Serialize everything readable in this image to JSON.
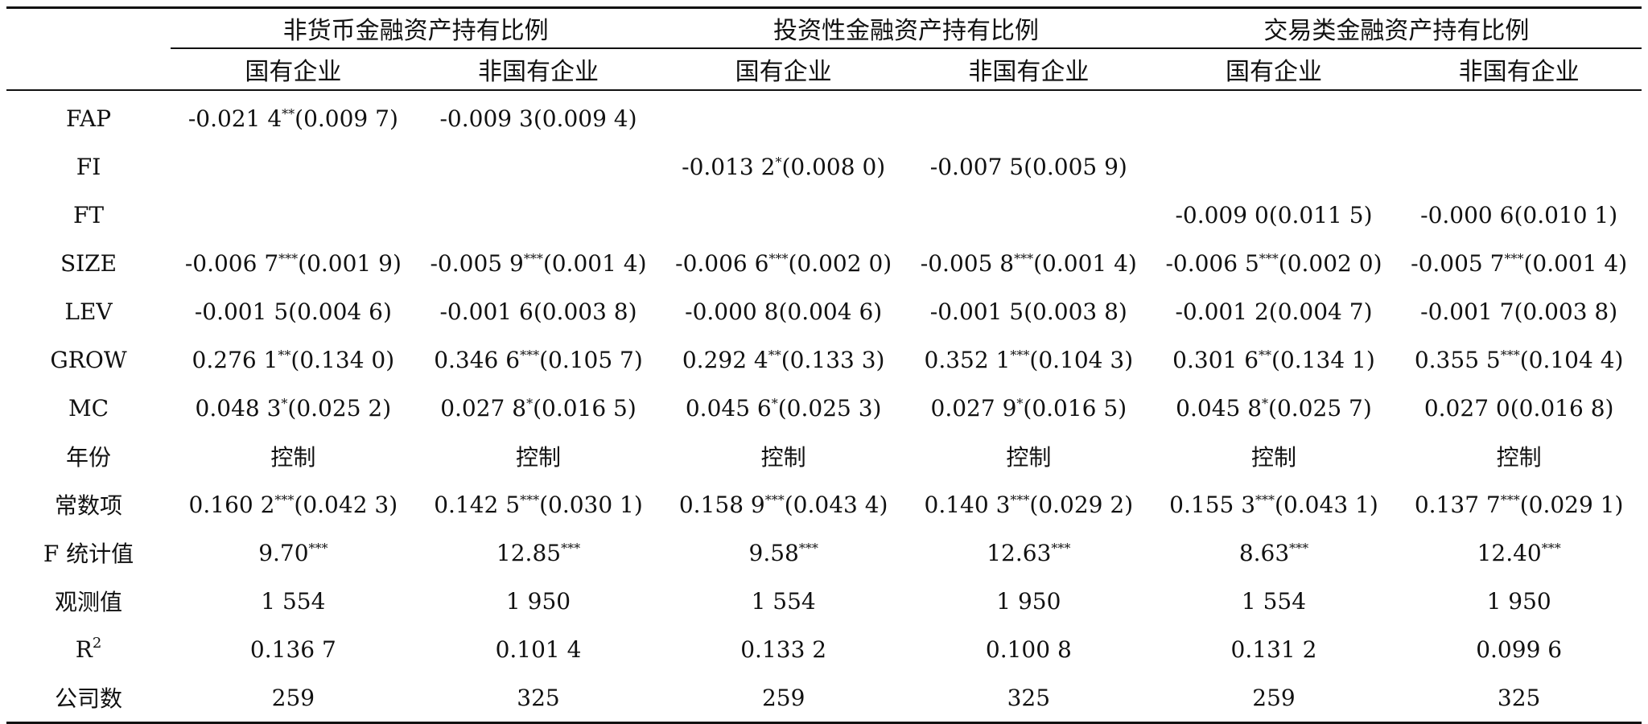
{
  "header": {
    "groups": [
      "非货币金融资产持有比例",
      "投资性金融资产持有比例",
      "交易类金融资产持有比例"
    ],
    "subgroups": [
      "国有企业",
      "非国有企业",
      "国有企业",
      "非国有企业",
      "国有企业",
      "非国有企业"
    ]
  },
  "rows": [
    {
      "label": "FAP",
      "cells": [
        {
          "coef": "-0.021 4",
          "stars": "**",
          "se": "(0.009 7)"
        },
        {
          "coef": "-0.009 3",
          "stars": "",
          "se": "(0.009 4)"
        },
        {
          "coef": "",
          "stars": "",
          "se": ""
        },
        {
          "coef": "",
          "stars": "",
          "se": ""
        },
        {
          "coef": "",
          "stars": "",
          "se": ""
        },
        {
          "coef": "",
          "stars": "",
          "se": ""
        }
      ]
    },
    {
      "label": "FI",
      "cells": [
        {
          "coef": "",
          "stars": "",
          "se": ""
        },
        {
          "coef": "",
          "stars": "",
          "se": ""
        },
        {
          "coef": "-0.013 2",
          "stars": "*",
          "se": "(0.008 0)"
        },
        {
          "coef": "-0.007 5",
          "stars": "",
          "se": "(0.005 9)"
        },
        {
          "coef": "",
          "stars": "",
          "se": ""
        },
        {
          "coef": "",
          "stars": "",
          "se": ""
        }
      ]
    },
    {
      "label": "FT",
      "cells": [
        {
          "coef": "",
          "stars": "",
          "se": ""
        },
        {
          "coef": "",
          "stars": "",
          "se": ""
        },
        {
          "coef": "",
          "stars": "",
          "se": ""
        },
        {
          "coef": "",
          "stars": "",
          "se": ""
        },
        {
          "coef": "-0.009 0",
          "stars": "",
          "se": "(0.011 5)"
        },
        {
          "coef": "-0.000 6",
          "stars": "",
          "se": "(0.010 1)"
        }
      ]
    },
    {
      "label": "SIZE",
      "cells": [
        {
          "coef": "-0.006 7",
          "stars": "***",
          "se": "(0.001 9)"
        },
        {
          "coef": "-0.005 9",
          "stars": "***",
          "se": "(0.001 4)"
        },
        {
          "coef": "-0.006 6",
          "stars": "***",
          "se": "(0.002 0)"
        },
        {
          "coef": "-0.005 8",
          "stars": "***",
          "se": "(0.001 4)"
        },
        {
          "coef": "-0.006 5",
          "stars": "***",
          "se": "(0.002 0)"
        },
        {
          "coef": "-0.005 7",
          "stars": "***",
          "se": "(0.001 4)"
        }
      ]
    },
    {
      "label": "LEV",
      "cells": [
        {
          "coef": "-0.001 5",
          "stars": "",
          "se": "(0.004 6)"
        },
        {
          "coef": "-0.001 6",
          "stars": "",
          "se": "(0.003 8)"
        },
        {
          "coef": "-0.000 8",
          "stars": "",
          "se": "(0.004 6)"
        },
        {
          "coef": "-0.001 5",
          "stars": "",
          "se": "(0.003 8)"
        },
        {
          "coef": "-0.001 2",
          "stars": "",
          "se": "(0.004 7)"
        },
        {
          "coef": "-0.001 7",
          "stars": "",
          "se": "(0.003 8)"
        }
      ]
    },
    {
      "label": "GROW",
      "cells": [
        {
          "coef": "0.276 1",
          "stars": "**",
          "se": "(0.134 0)"
        },
        {
          "coef": "0.346 6",
          "stars": "***",
          "se": "(0.105 7)"
        },
        {
          "coef": "0.292 4",
          "stars": "**",
          "se": "(0.133 3)"
        },
        {
          "coef": "0.352 1",
          "stars": "***",
          "se": "(0.104 3)"
        },
        {
          "coef": "0.301 6",
          "stars": "**",
          "se": "(0.134 1)"
        },
        {
          "coef": "0.355 5",
          "stars": "***",
          "se": "(0.104 4)"
        }
      ]
    },
    {
      "label": "MC",
      "cells": [
        {
          "coef": "0.048 3",
          "stars": "*",
          "se": "(0.025 2)"
        },
        {
          "coef": "0.027 8",
          "stars": "*",
          "se": "(0.016 5)"
        },
        {
          "coef": "0.045 6",
          "stars": "*",
          "se": "(0.025 3)"
        },
        {
          "coef": "0.027 9",
          "stars": "*",
          "se": "(0.016 5)"
        },
        {
          "coef": "0.045 8",
          "stars": "*",
          "se": "(0.025 7)"
        },
        {
          "coef": "0.027 0",
          "stars": "",
          "se": "(0.016 8)"
        }
      ]
    },
    {
      "label": "年份",
      "cells": [
        {
          "coef": "控制",
          "stars": "",
          "se": ""
        },
        {
          "coef": "控制",
          "stars": "",
          "se": ""
        },
        {
          "coef": "控制",
          "stars": "",
          "se": ""
        },
        {
          "coef": "控制",
          "stars": "",
          "se": ""
        },
        {
          "coef": "控制",
          "stars": "",
          "se": ""
        },
        {
          "coef": "控制",
          "stars": "",
          "se": ""
        }
      ]
    },
    {
      "label": "常数项",
      "cells": [
        {
          "coef": "0.160 2",
          "stars": "***",
          "se": "(0.042 3)"
        },
        {
          "coef": "0.142 5",
          "stars": "***",
          "se": "(0.030 1)"
        },
        {
          "coef": "0.158 9",
          "stars": "***",
          "se": "(0.043 4)"
        },
        {
          "coef": "0.140 3",
          "stars": "***",
          "se": "(0.029 2)"
        },
        {
          "coef": "0.155 3",
          "stars": "***",
          "se": "(0.043 1)"
        },
        {
          "coef": "0.137 7",
          "stars": "***",
          "se": "(0.029 1)"
        }
      ]
    },
    {
      "label": "F 统计值",
      "cells": [
        {
          "coef": "9.70",
          "stars": "***",
          "se": ""
        },
        {
          "coef": "12.85",
          "stars": "***",
          "se": ""
        },
        {
          "coef": "9.58",
          "stars": "***",
          "se": ""
        },
        {
          "coef": "12.63",
          "stars": "***",
          "se": ""
        },
        {
          "coef": "8.63",
          "stars": "***",
          "se": ""
        },
        {
          "coef": "12.40",
          "stars": "***",
          "se": ""
        }
      ]
    },
    {
      "label": "观测值",
      "cells": [
        {
          "coef": "1 554",
          "stars": "",
          "se": ""
        },
        {
          "coef": "1 950",
          "stars": "",
          "se": ""
        },
        {
          "coef": "1 554",
          "stars": "",
          "se": ""
        },
        {
          "coef": "1 950",
          "stars": "",
          "se": ""
        },
        {
          "coef": "1 554",
          "stars": "",
          "se": ""
        },
        {
          "coef": "1 950",
          "stars": "",
          "se": ""
        }
      ]
    },
    {
      "label": "R",
      "label_sup": "2",
      "cells": [
        {
          "coef": "0.136 7",
          "stars": "",
          "se": ""
        },
        {
          "coef": "0.101 4",
          "stars": "",
          "se": ""
        },
        {
          "coef": "0.133 2",
          "stars": "",
          "se": ""
        },
        {
          "coef": "0.100 8",
          "stars": "",
          "se": ""
        },
        {
          "coef": "0.131 2",
          "stars": "",
          "se": ""
        },
        {
          "coef": "0.099 6",
          "stars": "",
          "se": ""
        }
      ]
    },
    {
      "label": "公司数",
      "cells": [
        {
          "coef": "259",
          "stars": "",
          "se": ""
        },
        {
          "coef": "325",
          "stars": "",
          "se": ""
        },
        {
          "coef": "259",
          "stars": "",
          "se": ""
        },
        {
          "coef": "325",
          "stars": "",
          "se": ""
        },
        {
          "coef": "259",
          "stars": "",
          "se": ""
        },
        {
          "coef": "325",
          "stars": "",
          "se": ""
        }
      ]
    }
  ]
}
